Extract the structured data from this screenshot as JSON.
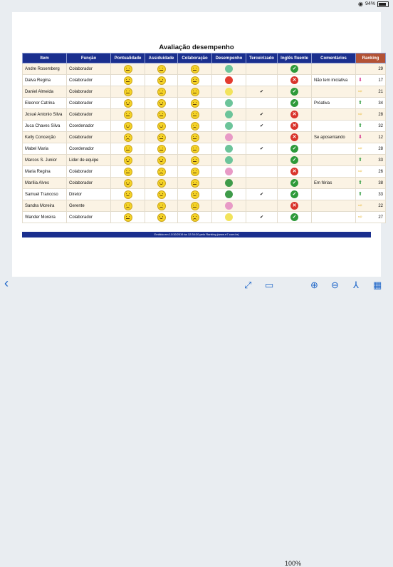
{
  "status": {
    "battery": "94%"
  },
  "report": {
    "title": "Avaliação desempenho",
    "footer": "Emitido em 11/10/2019 às 12:34:20 pelo Ranking (www.rr7.com.br)",
    "headers": [
      "Item",
      "Função",
      "Pontualidade",
      "Assiduidade",
      "Colaboração",
      "Desempenho",
      "Terceirizado",
      "Inglês fluente",
      "Comentários",
      "Ranking"
    ],
    "rows": [
      {
        "item": "Andre Rosemberg",
        "funcao": "Colaborador",
        "p": "neutral",
        "a": "neutral",
        "c": "neutral",
        "d": "#6cc49a",
        "t": "",
        "i": "yes",
        "com": "",
        "arrow": "",
        "rank": "29"
      },
      {
        "item": "Dalva Regina",
        "funcao": "Colaborador",
        "p": "neutral",
        "a": "happy",
        "c": "neutral",
        "d": "#e43b2f",
        "t": "",
        "i": "no",
        "com": "Não tem iniciativa",
        "arrow": "down",
        "rank": "17"
      },
      {
        "item": "Daniel Almeida",
        "funcao": "Colaborador",
        "p": "neutral",
        "a": "sad",
        "c": "neutral",
        "d": "#f2e35b",
        "t": "✔",
        "i": "yes",
        "com": "",
        "arrow": "right",
        "rank": "21"
      },
      {
        "item": "Eleonor Catrina",
        "funcao": "Colaborador",
        "p": "happy",
        "a": "happy",
        "c": "neutral",
        "d": "#6cc49a",
        "t": "",
        "i": "yes",
        "com": "Próativa",
        "arrow": "up",
        "rank": "34"
      },
      {
        "item": "Josué Antonio Silva",
        "funcao": "Colaborador",
        "p": "neutral",
        "a": "neutral",
        "c": "neutral",
        "d": "#6cc49a",
        "t": "✔",
        "i": "no",
        "com": "",
        "arrow": "right",
        "rank": "28"
      },
      {
        "item": "Juca Chaves Silva",
        "funcao": "Coordenador",
        "p": "happy",
        "a": "happy",
        "c": "sad",
        "d": "#6cc49a",
        "t": "✔",
        "i": "no",
        "com": "",
        "arrow": "up",
        "rank": "32"
      },
      {
        "item": "Kelly Conceição",
        "funcao": "Colaborador",
        "p": "sad",
        "a": "neutral",
        "c": "neutral",
        "d": "#e89ac6",
        "t": "",
        "i": "no",
        "com": "Se aposentando",
        "arrow": "down",
        "rank": "12"
      },
      {
        "item": "Mabel Maria",
        "funcao": "Coordenador",
        "p": "neutral",
        "a": "neutral",
        "c": "neutral",
        "d": "#6cc49a",
        "t": "✔",
        "i": "yes",
        "com": "",
        "arrow": "right",
        "rank": "28"
      },
      {
        "item": "Marcos S. Junior",
        "funcao": "Lider de equipe",
        "p": "happy",
        "a": "happy",
        "c": "neutral",
        "d": "#6cc49a",
        "t": "",
        "i": "yes",
        "com": "",
        "arrow": "up",
        "rank": "33"
      },
      {
        "item": "Maria Regina",
        "funcao": "Colaborador",
        "p": "neutral",
        "a": "sad",
        "c": "neutral",
        "d": "#e89ac6",
        "t": "",
        "i": "no",
        "com": "",
        "arrow": "right",
        "rank": "26"
      },
      {
        "item": "Marília Alves",
        "funcao": "Colaborador",
        "p": "happy",
        "a": "happy",
        "c": "neutral",
        "d": "#3f9b4a",
        "t": "",
        "i": "yes",
        "com": "Em férias",
        "arrow": "up",
        "rank": "38"
      },
      {
        "item": "Samuel Trancoso",
        "funcao": "Diretor",
        "p": "happy",
        "a": "happy",
        "c": "happy",
        "d": "#3f9b4a",
        "t": "✔",
        "i": "yes",
        "com": "",
        "arrow": "up",
        "rank": "33"
      },
      {
        "item": "Sandra Moreira",
        "funcao": "Gerente",
        "p": "sad",
        "a": "sad",
        "c": "neutral",
        "d": "#e89ac6",
        "t": "",
        "i": "no",
        "com": "",
        "arrow": "right",
        "rank": "22"
      },
      {
        "item": "Wander Moreira",
        "funcao": "Colaborador",
        "p": "neutral",
        "a": "happy",
        "c": "sad",
        "d": "#f2e35b",
        "t": "✔",
        "i": "yes",
        "com": "",
        "arrow": "right",
        "rank": "27"
      }
    ]
  },
  "toolbar": {
    "zoom": "100%"
  },
  "colors": {
    "header": "#1a2f8e",
    "ranking_header": "#b35235",
    "accent": "#1b64c8"
  }
}
